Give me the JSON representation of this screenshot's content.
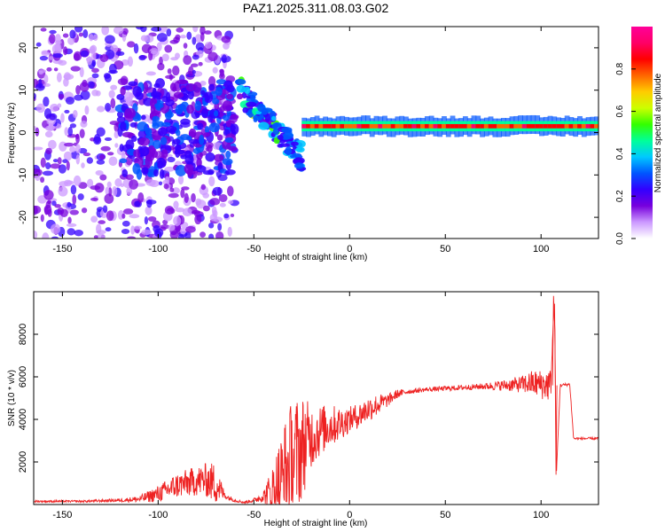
{
  "chart_data": [
    {
      "type": "heatmap",
      "title": "PAZ1.2025.311.08.03.G02",
      "xlabel": "Height of straight line (km)",
      "ylabel": "Frequency (Hz)",
      "xlim": [
        -165,
        130
      ],
      "ylim": [
        -25,
        25
      ],
      "xticks": [
        -150,
        -100,
        -50,
        0,
        50,
        100
      ],
      "yticks": [
        -20,
        -10,
        0,
        10,
        20
      ],
      "colorbar": {
        "label": "Normalized spectral amplitude",
        "range": [
          0,
          1
        ],
        "ticks": [
          0.0,
          0.2,
          0.4,
          0.6,
          0.8
        ],
        "colors": [
          "#ffffff",
          "#cc99ff",
          "#7700dd",
          "#3300ff",
          "#0055ff",
          "#00c8ff",
          "#00ff99",
          "#33ff00",
          "#ccff00",
          "#ffcc00",
          "#ff6600",
          "#ff0000",
          "#ff0066",
          "#ff0099"
        ]
      },
      "regions": [
        {
          "name": "scattered-noise",
          "x": [
            -165,
            -60
          ],
          "f": [
            -25,
            25
          ],
          "amplitude": 0.12
        },
        {
          "name": "blob-cluster",
          "x": [
            -120,
            -60
          ],
          "f": [
            -10,
            12
          ],
          "amplitude": 0.3
        },
        {
          "name": "diagonal-streak",
          "x": [
            -58,
            -25
          ],
          "f_start": 10,
          "f_end": -6,
          "amplitude": 0.45
        },
        {
          "name": "stable-band",
          "x": [
            -25,
            130
          ],
          "f": 1.5,
          "amplitude": 0.9
        }
      ]
    },
    {
      "type": "line",
      "xlabel": "Height of straight line (km)",
      "ylabel": "SNR (10 * v/v)",
      "xlim": [
        -165,
        130
      ],
      "ylim": [
        0,
        10000
      ],
      "xticks": [
        -150,
        -100,
        -50,
        0,
        50,
        100
      ],
      "yticks": [
        2000,
        4000,
        6000,
        8000
      ],
      "color": "#ee2222",
      "series": [
        {
          "name": "SNR",
          "x": [
            -165,
            -140,
            -120,
            -110,
            -100,
            -95,
            -90,
            -85,
            -80,
            -75,
            -70,
            -65,
            -60,
            -55,
            -50,
            -45,
            -40,
            -35,
            -30,
            -25,
            -20,
            -15,
            -10,
            -5,
            0,
            5,
            10,
            15,
            20,
            25,
            30,
            40,
            50,
            60,
            70,
            80,
            90,
            95,
            100,
            105,
            107,
            108,
            110,
            115,
            117,
            120,
            130
          ],
          "y": [
            150,
            150,
            200,
            250,
            500,
            700,
            900,
            1000,
            1100,
            1150,
            1000,
            400,
            200,
            100,
            200,
            400,
            700,
            1200,
            2000,
            2700,
            3200,
            3500,
            3700,
            3800,
            4000,
            4200,
            4500,
            4700,
            4900,
            5200,
            5300,
            5400,
            5450,
            5500,
            5550,
            5600,
            5650,
            5700,
            5650,
            5600,
            9700,
            1400,
            5600,
            5650,
            3100,
            3100,
            3100
          ],
          "amplitude": [
            50,
            50,
            80,
            150,
            400,
            500,
            600,
            650,
            700,
            800,
            1000,
            150,
            80,
            50,
            100,
            300,
            1200,
            2500,
            3000,
            2500,
            1500,
            1200,
            1000,
            800,
            600,
            600,
            600,
            500,
            300,
            200,
            120,
            100,
            120,
            120,
            150,
            250,
            400,
            600,
            700,
            800,
            0,
            0,
            80,
            60,
            60,
            60,
            60
          ]
        }
      ]
    }
  ]
}
